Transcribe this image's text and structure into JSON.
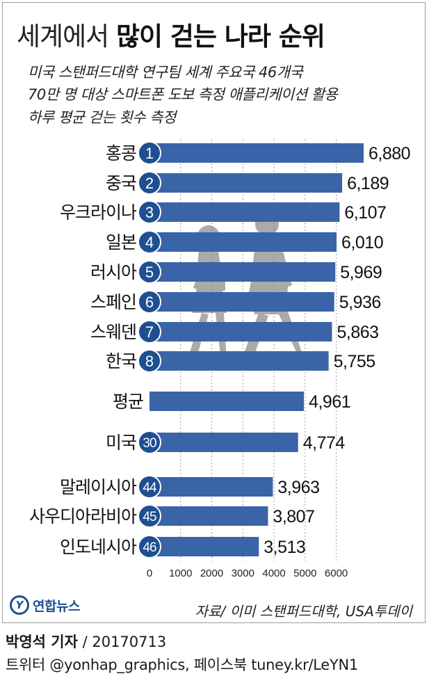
{
  "title": {
    "light": "세계에서",
    "bold": "많이 걷는 나라 순위"
  },
  "subtitle_lines": [
    "미국 스탠퍼드대학 연구팀 세계 주요국 46개국",
    "70만 명 대상 스마트폰 도보 측정 애플리케이션 활용",
    "하루 평균 걷는 횟수 측정"
  ],
  "chart_data": {
    "type": "bar",
    "orientation": "horizontal",
    "categories": [
      "홍콩",
      "중국",
      "우크라이나",
      "일본",
      "러시아",
      "스페인",
      "스웨덴",
      "한국",
      "평균",
      "미국",
      "말레이시아",
      "사우디아라비아",
      "인도네시아"
    ],
    "ranks": [
      "1",
      "2",
      "3",
      "4",
      "5",
      "6",
      "7",
      "8",
      "",
      "30",
      "44",
      "45",
      "46"
    ],
    "values": [
      6880,
      6189,
      6107,
      6010,
      5969,
      5936,
      5863,
      5755,
      4961,
      4774,
      3963,
      3807,
      3513
    ],
    "value_labels": [
      "6,880",
      "6,189",
      "6,107",
      "6,010",
      "5,969",
      "5,936",
      "5,863",
      "5,755",
      "4,961",
      "4,774",
      "3,963",
      "3,807",
      "3,513"
    ],
    "xticks": [
      0,
      1000,
      2000,
      3000,
      4000,
      5000,
      6000
    ],
    "xtick_labels": [
      "0",
      "1000",
      "2000",
      "3000",
      "4000",
      "5000",
      "6000"
    ],
    "xlim": [
      0,
      7000
    ],
    "grid": "vertical dashed lines at ticks",
    "bar_color": "#3a64a8",
    "badge_color": "#1d4f91"
  },
  "source": "자료/ 이미 스탠퍼드대학, USA투데이",
  "logo": {
    "mark": "Y",
    "text": "연합뉴스"
  },
  "byline": {
    "name": "박영석 기자",
    "date": " / 20170713"
  },
  "social": "트위터 @yonhap_graphics, 페이스북 tuney.kr/LeYN1"
}
